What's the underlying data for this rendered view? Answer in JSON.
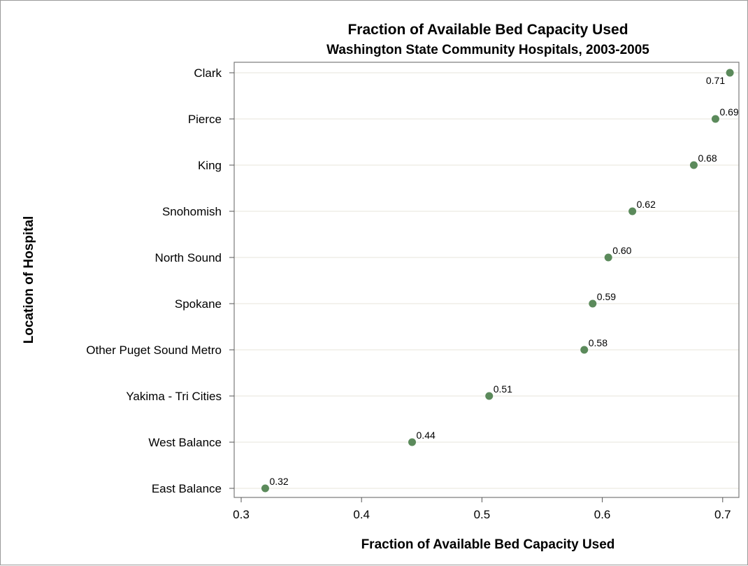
{
  "chart_data": {
    "type": "scatter",
    "title": "Fraction of Available Bed Capacity Used",
    "subtitle": "Washington State Community Hospitals, 2003-2005",
    "xlabel": "Fraction of Available Bed Capacity Used",
    "ylabel": "Location of Hospital",
    "xlim": [
      0.3,
      0.71
    ],
    "xticks": [
      "0.3",
      "0.4",
      "0.5",
      "0.6",
      "0.7"
    ],
    "grid": "horizontal",
    "marker_color": "#5b8a5b",
    "points": [
      {
        "category": "Clark",
        "value": 0.706,
        "label": "0.71"
      },
      {
        "category": "Pierce",
        "value": 0.694,
        "label": "0.69"
      },
      {
        "category": "King",
        "value": 0.676,
        "label": "0.68"
      },
      {
        "category": "Snohomish",
        "value": 0.625,
        "label": "0.62"
      },
      {
        "category": "North Sound",
        "value": 0.605,
        "label": "0.60"
      },
      {
        "category": "Spokane",
        "value": 0.592,
        "label": "0.59"
      },
      {
        "category": "Other Puget Sound Metro",
        "value": 0.585,
        "label": "0.58"
      },
      {
        "category": "Yakima - Tri Cities",
        "value": 0.506,
        "label": "0.51"
      },
      {
        "category": "West Balance",
        "value": 0.442,
        "label": "0.44"
      },
      {
        "category": "East Balance",
        "value": 0.32,
        "label": "0.32"
      }
    ]
  }
}
